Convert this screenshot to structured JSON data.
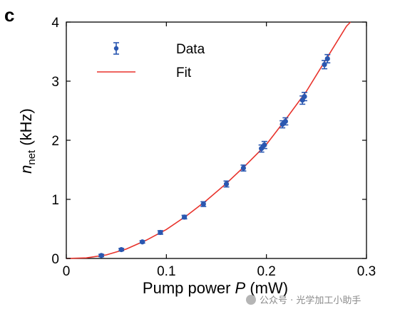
{
  "panel_label": "c",
  "watermark": "公众号 · 光学加工小助手",
  "colors": {
    "data": "#2a57b0",
    "fit": "#e8322b",
    "axis": "#000000"
  },
  "chart_data": {
    "type": "scatter",
    "title": "",
    "xlabel": "Pump power P (mW)",
    "xlabel_parts": {
      "pre": "Pump power ",
      "var": "P",
      "post": " (mW)"
    },
    "ylabel": "n_net (kHz)",
    "ylabel_parts": {
      "var": "n",
      "sub": "net",
      "post": " (kHz)"
    },
    "xlim": [
      0,
      0.3
    ],
    "ylim": [
      0,
      4
    ],
    "xticks": [
      0,
      0.1,
      0.2,
      0.3
    ],
    "xtick_labels": [
      "0",
      "0.1",
      "0.2",
      "0.3"
    ],
    "yticks": [
      0,
      1,
      2,
      3,
      4
    ],
    "ytick_labels": [
      "0",
      "1",
      "2",
      "3",
      "4"
    ],
    "grid": false,
    "legend_position": "top-left",
    "legend": [
      "Data",
      "Fit"
    ],
    "series": [
      {
        "name": "Data",
        "type": "scatter",
        "points": [
          {
            "x": 0.035,
            "y": 0.05,
            "err": 0.02
          },
          {
            "x": 0.055,
            "y": 0.15,
            "err": 0.02
          },
          {
            "x": 0.076,
            "y": 0.28,
            "err": 0.02
          },
          {
            "x": 0.094,
            "y": 0.44,
            "err": 0.03
          },
          {
            "x": 0.118,
            "y": 0.7,
            "err": 0.03
          },
          {
            "x": 0.137,
            "y": 0.92,
            "err": 0.04
          },
          {
            "x": 0.16,
            "y": 1.26,
            "err": 0.05
          },
          {
            "x": 0.177,
            "y": 1.53,
            "err": 0.05
          },
          {
            "x": 0.195,
            "y": 1.86,
            "err": 0.06
          },
          {
            "x": 0.198,
            "y": 1.92,
            "err": 0.06
          },
          {
            "x": 0.216,
            "y": 2.27,
            "err": 0.06
          },
          {
            "x": 0.219,
            "y": 2.32,
            "err": 0.06
          },
          {
            "x": 0.236,
            "y": 2.68,
            "err": 0.07
          },
          {
            "x": 0.238,
            "y": 2.74,
            "err": 0.07
          },
          {
            "x": 0.258,
            "y": 3.28,
            "err": 0.07
          },
          {
            "x": 0.261,
            "y": 3.38,
            "err": 0.07
          }
        ]
      },
      {
        "name": "Fit",
        "type": "line",
        "x": [
          0,
          0.02,
          0.04,
          0.06,
          0.08,
          0.1,
          0.12,
          0.14,
          0.16,
          0.18,
          0.2,
          0.22,
          0.24,
          0.26,
          0.28,
          0.284
        ],
        "y": [
          0,
          0.01,
          0.06,
          0.16,
          0.31,
          0.49,
          0.72,
          0.98,
          1.27,
          1.59,
          1.93,
          2.37,
          2.83,
          3.38,
          3.93,
          4.0
        ]
      }
    ]
  }
}
